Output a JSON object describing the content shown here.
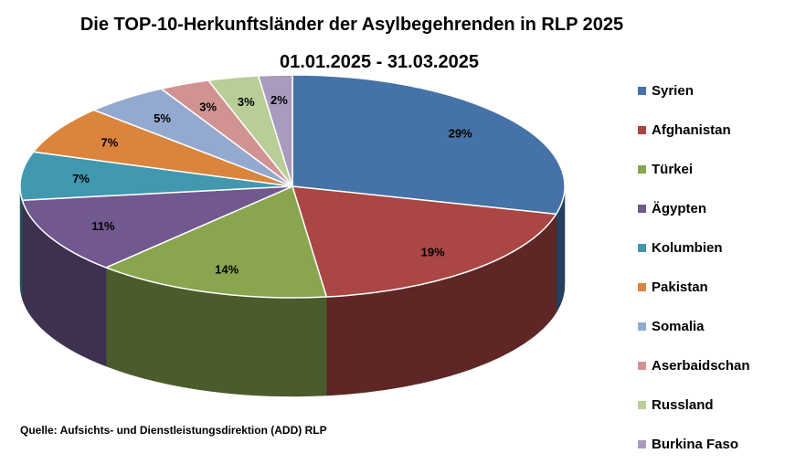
{
  "chart_data": {
    "type": "pie",
    "title": "Die TOP-10-Herkunftsländer der Asylbegehrenden in RLP 2025",
    "subtitle": "01.01.2025 - 31.03.2025",
    "source": "Quelle: Aufsichts- und Dienstleistungsdirektion (ADD) RLP",
    "legend_position": "right",
    "slices": [
      {
        "label": "Syrien",
        "value": 29,
        "value_label": "29%",
        "color": "#4572A7"
      },
      {
        "label": "Afghanistan",
        "value": 19,
        "value_label": "19%",
        "color": "#AA4643"
      },
      {
        "label": "Türkei",
        "value": 14,
        "value_label": "14%",
        "color": "#89A54E"
      },
      {
        "label": "Ägypten",
        "value": 11,
        "value_label": "11%",
        "color": "#71588F"
      },
      {
        "label": "Kolumbien",
        "value": 7,
        "value_label": "7%",
        "color": "#4198AF"
      },
      {
        "label": "Pakistan",
        "value": 7,
        "value_label": "7%",
        "color": "#DB843D"
      },
      {
        "label": "Somalia",
        "value": 5,
        "value_label": "5%",
        "color": "#93A9CF"
      },
      {
        "label": "Aserbaidschan",
        "value": 3,
        "value_label": "3%",
        "color": "#D19392"
      },
      {
        "label": "Russland",
        "value": 3,
        "value_label": "3%",
        "color": "#B9CD96"
      },
      {
        "label": "Burkina Faso",
        "value": 2,
        "value_label": "2%",
        "color": "#A99BBD"
      }
    ]
  }
}
